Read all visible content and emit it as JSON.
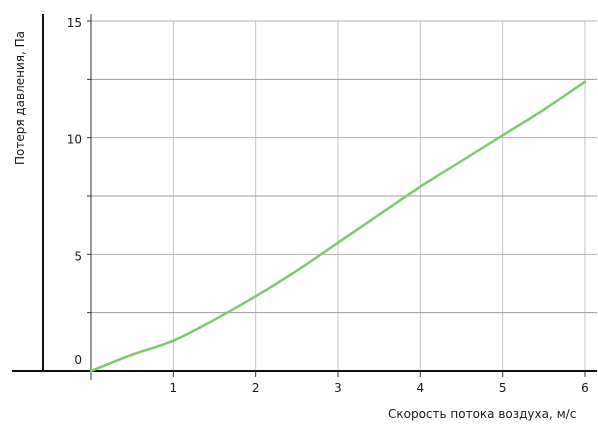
{
  "chart_data": {
    "type": "line",
    "title": "",
    "xlabel": "Скорость потока воздуха, м/с",
    "ylabel": "Потеря давления, Па",
    "xlim": [
      0,
      6.1
    ],
    "ylim": [
      0,
      15
    ],
    "x_ticks": [
      "1",
      "2",
      "3",
      "4",
      "5",
      "6"
    ],
    "y_ticks": [
      "0",
      "5",
      "10",
      "15"
    ],
    "x_tick_values": [
      1,
      2,
      3,
      4,
      5,
      6
    ],
    "y_tick_values": [
      0,
      5,
      10,
      15
    ],
    "grid": true,
    "legend": "none",
    "series": [
      {
        "color": "#7ccb6a",
        "x": [
          0,
          0.5,
          1,
          1.5,
          2,
          2.5,
          3,
          3.5,
          4,
          4.5,
          5,
          5.5,
          6
        ],
        "y": [
          0,
          0.7,
          1.3,
          2.2,
          3.2,
          4.3,
          5.5,
          6.7,
          7.9,
          9.0,
          10.1,
          11.2,
          12.4
        ]
      }
    ]
  }
}
